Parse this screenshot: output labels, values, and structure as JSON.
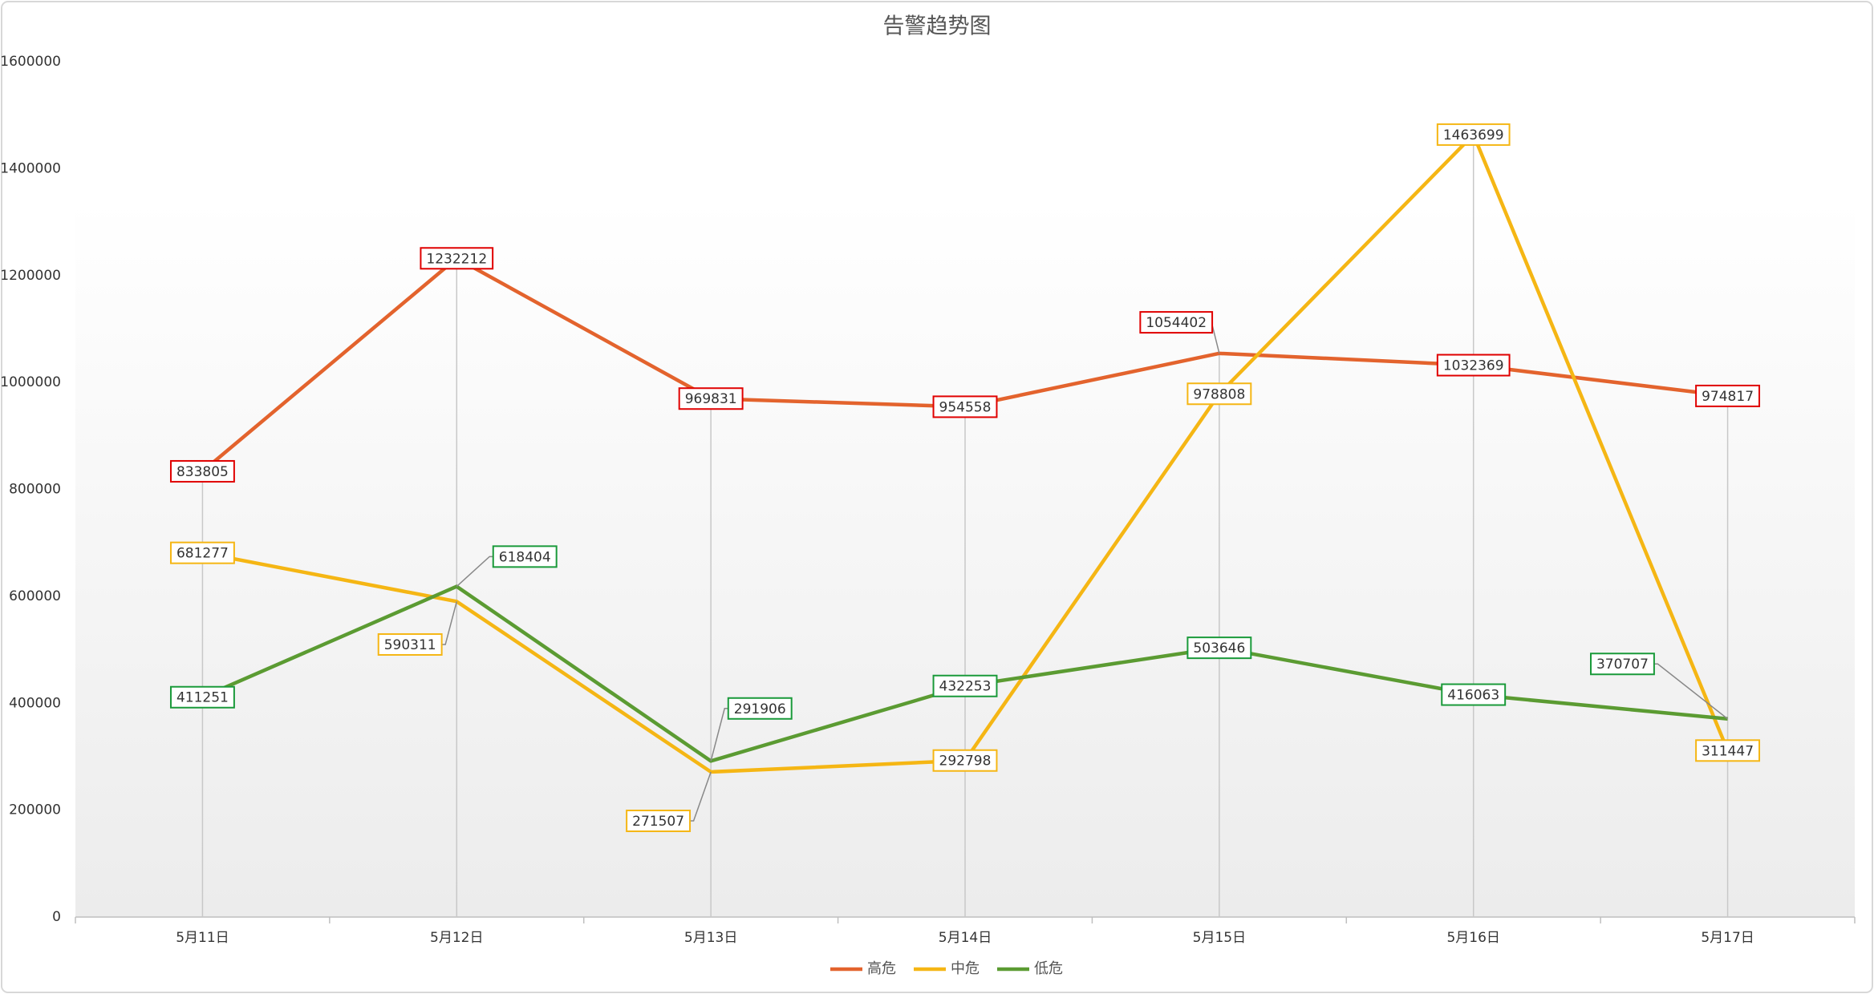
{
  "chart_data": {
    "type": "line",
    "title": "告警趋势图",
    "categories": [
      "5月11日",
      "5月12日",
      "5月13日",
      "5月14日",
      "5月15日",
      "5月16日",
      "5月17日"
    ],
    "series": [
      {
        "name": "高危",
        "color": "#e3632d",
        "label_border": "#e00000",
        "values": [
          833805,
          1232212,
          969831,
          954558,
          1054402,
          1032369,
          974817
        ]
      },
      {
        "name": "中危",
        "color": "#f5b614",
        "label_border": "#f5b614",
        "values": [
          681277,
          590311,
          271507,
          292798,
          978808,
          1463699,
          311447
        ]
      },
      {
        "name": "低危",
        "color": "#5b9b32",
        "label_border": "#1a9a3a",
        "values": [
          411251,
          618404,
          291906,
          432253,
          503646,
          416063,
          370707
        ]
      }
    ],
    "ylim": [
      0,
      1600000
    ],
    "yticks": [
      0,
      200000,
      400000,
      600000,
      800000,
      1000000,
      1200000,
      1400000,
      1600000
    ],
    "legend": "bottom"
  }
}
